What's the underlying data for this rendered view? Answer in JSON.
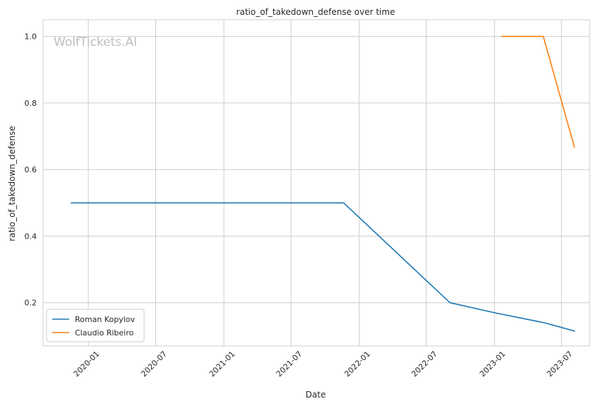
{
  "chart_data": {
    "type": "line",
    "title": "ratio_of_takedown_defense over time",
    "xlabel": "Date",
    "ylabel": "ratio_of_takedown_defense",
    "watermark": "WolfTickets.AI",
    "x_ticks": [
      "2020-01",
      "2020-07",
      "2021-01",
      "2021-07",
      "2022-01",
      "2022-07",
      "2023-01",
      "2023-07"
    ],
    "y_ticks": [
      0.2,
      0.4,
      0.6,
      0.8,
      1.0
    ],
    "xlim": [
      "2019-09-01",
      "2023-09-15"
    ],
    "ylim": [
      0.07,
      1.05
    ],
    "grid": true,
    "legend_position": "lower-left",
    "series": [
      {
        "name": "Roman Kopylov",
        "color": "#1f77b4",
        "points": [
          {
            "x": "2019-11-16",
            "y": 0.5
          },
          {
            "x": "2021-11-20",
            "y": 0.5
          },
          {
            "x": "2022-09-03",
            "y": 0.2
          },
          {
            "x": "2023-01-01",
            "y": 0.17
          },
          {
            "x": "2023-05-15",
            "y": 0.14
          },
          {
            "x": "2023-08-05",
            "y": 0.115
          }
        ]
      },
      {
        "name": "Claudio Ribeiro",
        "color": "#ff7f0e",
        "points": [
          {
            "x": "2023-01-21",
            "y": 1.0
          },
          {
            "x": "2023-05-13",
            "y": 1.0
          },
          {
            "x": "2023-08-05",
            "y": 0.667
          }
        ]
      }
    ]
  }
}
